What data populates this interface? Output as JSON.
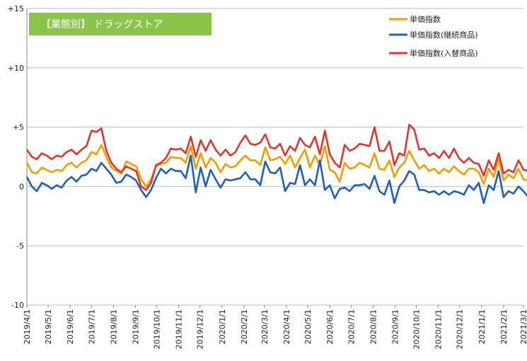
{
  "chart_data": {
    "type": "line",
    "title": "【業態別】 ドラッグストア",
    "title_bg": "#8ac44a",
    "ylim": [
      -10,
      15
    ],
    "yticks": [
      -10,
      -5,
      0,
      5,
      10,
      15
    ],
    "ytick_labels": [
      "-10",
      "-5",
      "0",
      "+5",
      "+10",
      "+15"
    ],
    "grid": true,
    "legend_position": "top-right",
    "x_start": "2019/4/1",
    "x_step_days": 7,
    "xtick_labels": [
      "2019/4/1",
      "2019/5/1",
      "2019/6/1",
      "2019/7/1",
      "2019/8/1",
      "2019/9/1",
      "2019/10/1",
      "2019/11/1",
      "2019/12/1",
      "2020/1/1",
      "2020/2/1",
      "2020/3/1",
      "2020/4/1",
      "2020/5/1",
      "2020/6/1",
      "2020/7/1",
      "2020/8/1",
      "2020/9/1",
      "2020/10/1",
      "2020/11/1",
      "2020/12/1",
      "2021/1/1",
      "2021/2/1",
      "2021/3/1"
    ],
    "series": [
      {
        "name": "単価指数",
        "color": "#f59c00",
        "values": [
          2.0,
          1.2,
          1.1,
          1.6,
          1.4,
          1.2,
          1.4,
          1.3,
          1.8,
          2.0,
          1.6,
          2.0,
          2.2,
          2.9,
          2.7,
          3.5,
          2.5,
          1.6,
          1.3,
          1.1,
          2.1,
          1.9,
          1.7,
          0.6,
          0.0,
          0.6,
          1.7,
          1.9,
          2.0,
          2.5,
          2.4,
          2.4,
          2.0,
          3.4,
          1.5,
          2.8,
          1.6,
          2.4,
          2.0,
          1.2,
          1.9,
          1.6,
          1.7,
          2.2,
          2.6,
          2.2,
          2.2,
          1.8,
          3.3,
          2.2,
          2.3,
          2.5,
          1.9,
          2.6,
          1.6,
          2.4,
          3.1,
          1.6,
          2.6,
          1.8,
          3.4,
          1.4,
          1.2,
          0.4,
          2.0,
          1.5,
          1.6,
          2.0,
          1.8,
          1.6,
          2.8,
          1.5,
          1.4,
          2.2,
          0.8,
          1.6,
          2.0,
          3.0,
          2.2,
          1.5,
          1.8,
          1.3,
          1.5,
          1.1,
          1.5,
          1.2,
          1.7,
          1.3,
          1.0,
          1.5,
          1.5,
          1.2,
          0.2,
          1.5,
          0.8,
          2.3,
          0.5,
          1.0,
          0.7,
          1.5,
          0.6,
          0.5
        ]
      },
      {
        "name": "単価指数(継続商品)",
        "color": "#1f5fbf",
        "values": [
          0.8,
          0.0,
          -0.4,
          0.3,
          0.1,
          -0.2,
          0.1,
          -0.1,
          0.5,
          0.8,
          0.4,
          0.9,
          1.0,
          1.5,
          1.3,
          2.0,
          1.5,
          1.0,
          0.3,
          0.4,
          1.0,
          0.8,
          0.5,
          -0.3,
          -0.9,
          -0.3,
          0.7,
          1.5,
          1.1,
          1.5,
          1.3,
          1.3,
          0.7,
          2.6,
          -0.5,
          1.6,
          0.0,
          1.4,
          0.6,
          -0.1,
          0.6,
          0.5,
          0.6,
          0.7,
          1.2,
          0.6,
          0.6,
          0.1,
          2.1,
          1.2,
          1.1,
          1.6,
          -0.4,
          0.3,
          0.2,
          1.8,
          0.1,
          0.6,
          0.1,
          2.2,
          -0.3,
          0.1,
          -1.0,
          -0.2,
          -0.1,
          -0.4,
          0.1,
          0.1,
          0.2,
          -0.2,
          0.9,
          -0.4,
          -0.7,
          0.5,
          -1.4,
          0.0,
          0.5,
          1.3,
          1.0,
          -0.3,
          -0.3,
          -0.5,
          -0.4,
          -0.7,
          -0.4,
          -0.7,
          -0.4,
          -0.5,
          -0.7,
          0.1,
          -0.3,
          0.3,
          -1.4,
          0.1,
          -0.3,
          1.3,
          -0.9,
          -0.4,
          -0.6,
          0.0,
          -0.4,
          -0.9
        ]
      },
      {
        "name": "単価指数(入替商品)",
        "color": "#e0352b",
        "values": [
          3.1,
          2.5,
          2.3,
          2.8,
          2.6,
          2.3,
          2.6,
          2.5,
          2.9,
          3.1,
          2.7,
          3.1,
          3.4,
          4.7,
          4.6,
          4.9,
          3.0,
          2.0,
          1.5,
          1.2,
          1.7,
          1.5,
          1.3,
          0.0,
          -0.3,
          0.3,
          1.8,
          2.0,
          2.4,
          3.2,
          3.1,
          3.2,
          2.8,
          4.2,
          2.5,
          3.9,
          3.0,
          3.9,
          3.1,
          2.6,
          3.1,
          2.6,
          2.9,
          3.7,
          4.3,
          3.6,
          3.5,
          3.7,
          4.4,
          3.3,
          3.2,
          3.6,
          2.6,
          3.4,
          3.0,
          4.1,
          3.5,
          3.3,
          4.2,
          2.7,
          4.7,
          2.7,
          2.0,
          1.6,
          3.5,
          3.0,
          3.2,
          3.6,
          3.5,
          3.4,
          5.0,
          3.0,
          3.0,
          3.8,
          1.8,
          2.8,
          2.6,
          5.2,
          4.8,
          3.1,
          3.2,
          2.6,
          2.8,
          2.4,
          3.0,
          2.4,
          3.2,
          2.4,
          2.0,
          2.4,
          2.0,
          1.9,
          0.9,
          2.2,
          1.4,
          2.8,
          1.1,
          1.4,
          1.2,
          2.2,
          1.4,
          1.3
        ]
      }
    ]
  }
}
